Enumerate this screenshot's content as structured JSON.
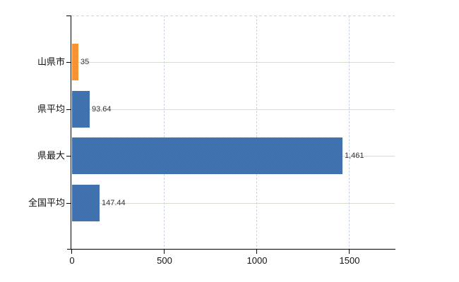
{
  "chart_data": {
    "type": "bar",
    "orientation": "horizontal",
    "title": "",
    "xlabel": "",
    "ylabel": "",
    "categories": [
      "山県市",
      "県平均",
      "県最大",
      "全国平均"
    ],
    "values": [
      35,
      93.64,
      1461,
      147.44
    ],
    "value_labels": [
      "35",
      "93.64",
      "1,461",
      "147.44"
    ],
    "bar_color_base": [
      "#ee8627",
      "#3b6ba8",
      "#3b6ba8",
      "#3b6ba8"
    ],
    "bar_color_alt": [
      "#f8a14e",
      "#4678b6",
      "#4678b6",
      "#4678b6"
    ],
    "xticks": [
      0,
      500,
      1000,
      1500
    ],
    "xtick_labels": [
      "0",
      "500",
      "1000",
      "1500"
    ],
    "xlim": [
      0,
      1748
    ],
    "grid": true,
    "legend": null
  },
  "colors": {
    "axis": "#000000",
    "grid_horizontal": "#d6ddd3",
    "grid_vertical": "#c8d4e3",
    "top_border": "#d5cfdc",
    "value_label": "#333333",
    "category_label": "#111111",
    "background": "#ffffff"
  }
}
